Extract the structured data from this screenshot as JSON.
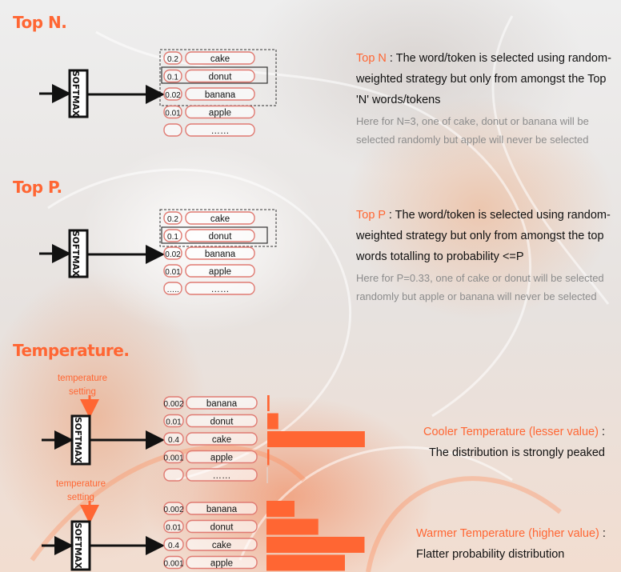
{
  "sections": {
    "topn": {
      "title": "Top N.",
      "hl": "Top N",
      "desc": " : The word/token is selected using random-weighted strategy but only from amongst the Top 'N' words/tokens",
      "note": "Here for N=3, one of cake, donut or banana will be selected randomly but apple will never be selected"
    },
    "topp": {
      "title": "Top P.",
      "hl": "Top P",
      "desc": " : The word/token is selected using random-weighted strategy but only from amongst the top words totalling to probability <=P",
      "note": "Here for P=0.33, one of cake or donut will be selected randomly but apple or banana will never be selected"
    },
    "temperature": {
      "title": "Temperature.",
      "setting_label": "temperature setting",
      "cool_hl": "Cooler Temperature (lesser value)",
      "cool_colon": " :",
      "cool_desc": "The distribution is strongly peaked",
      "warm_hl": "Warmer Temperature (higher value)",
      "warm_colon": " :",
      "warm_desc": "Flatter probability distribution"
    }
  },
  "softmax_label": "SOFTMAX",
  "topn_rows": [
    {
      "prob": "0.2",
      "word": "cake"
    },
    {
      "prob": "0.1",
      "word": "donut"
    },
    {
      "prob": "0.02",
      "word": "banana"
    },
    {
      "prob": "0.01",
      "word": "apple"
    },
    {
      "prob": "",
      "word": "……"
    }
  ],
  "topp_rows": [
    {
      "prob": "0.2",
      "word": "cake"
    },
    {
      "prob": "0.1",
      "word": "donut"
    },
    {
      "prob": "0.02",
      "word": "banana"
    },
    {
      "prob": "0.01",
      "word": "apple"
    },
    {
      "prob": "…..",
      "word": "……"
    }
  ],
  "cool_rows": [
    {
      "prob": "0.002",
      "word": "banana",
      "bar": 0.012
    },
    {
      "prob": "0.01",
      "word": "donut",
      "bar": 0.06
    },
    {
      "prob": "0.4",
      "word": "cake",
      "bar": 0.53
    },
    {
      "prob": "0.001",
      "word": "apple",
      "bar": 0.008
    },
    {
      "prob": "",
      "word": "……",
      "bar": 0.0
    }
  ],
  "warm_rows": [
    {
      "prob": "0.002",
      "word": "banana",
      "bar": 0.2
    },
    {
      "prob": "0.01",
      "word": "donut",
      "bar": 0.37
    },
    {
      "prob": "0.4",
      "word": "cake",
      "bar": 0.7
    },
    {
      "prob": "0.001",
      "word": "apple",
      "bar": 0.56
    }
  ],
  "colors": {
    "accent": "#ff6633",
    "box": "#e07a72",
    "text": "#111111"
  }
}
